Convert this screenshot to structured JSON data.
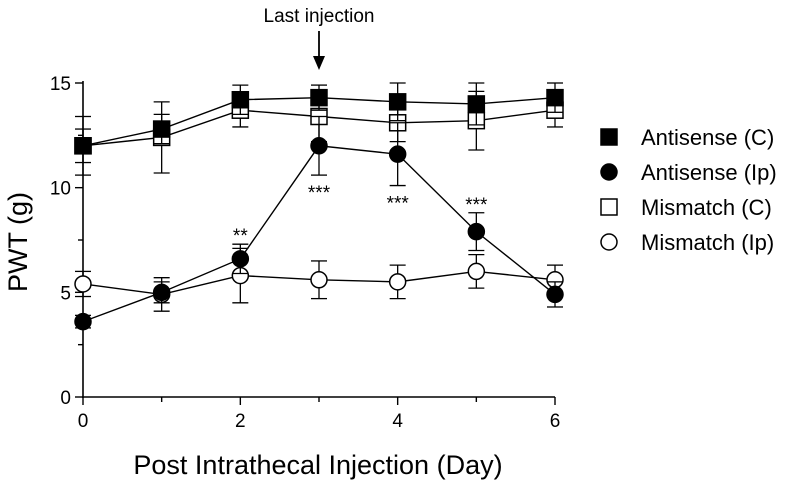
{
  "chart_data": {
    "type": "line",
    "title": "",
    "xlabel": "Post Intrathecal Injection (Day)",
    "ylabel": "PWT (g)",
    "xlim": [
      0,
      6
    ],
    "ylim": [
      0,
      15
    ],
    "xticks": [
      0,
      2,
      4,
      6
    ],
    "yticks": [
      0,
      5,
      10,
      15
    ],
    "x": [
      0,
      1,
      2,
      3,
      4,
      5,
      6
    ],
    "series": [
      {
        "name": "Antisense (C)",
        "marker": "square",
        "filled": true,
        "values": [
          12.0,
          12.8,
          14.2,
          14.3,
          14.1,
          14.0,
          14.3
        ],
        "error": [
          0.8,
          0.7,
          0.7,
          0.6,
          0.9,
          1.0,
          0.7
        ]
      },
      {
        "name": "Antisense (Ip)",
        "marker": "circle",
        "filled": true,
        "values": [
          3.6,
          5.0,
          6.6,
          12.0,
          11.6,
          7.9,
          4.9
        ],
        "error": [
          0.3,
          0.5,
          0.7,
          1.4,
          1.5,
          0.9,
          0.6
        ]
      },
      {
        "name": "Mismatch (C)",
        "marker": "square",
        "filled": false,
        "values": [
          12.0,
          12.4,
          13.7,
          13.4,
          13.1,
          13.2,
          13.7
        ],
        "error": [
          1.4,
          1.7,
          0.8,
          1.2,
          0.9,
          1.4,
          0.8
        ]
      },
      {
        "name": "Mismatch (Ip)",
        "marker": "circle",
        "filled": false,
        "values": [
          5.4,
          4.9,
          5.8,
          5.6,
          5.5,
          6.0,
          5.6
        ],
        "error": [
          0.6,
          0.8,
          1.3,
          0.9,
          0.8,
          0.8,
          0.7
        ]
      }
    ],
    "significance": [
      {
        "x": 2,
        "label": "**"
      },
      {
        "x": 3,
        "label": "***"
      },
      {
        "x": 4,
        "label": "***"
      },
      {
        "x": 5,
        "label": "***"
      }
    ],
    "annotation": {
      "label": "Last injection",
      "x": 3
    },
    "legend_position": "right"
  }
}
